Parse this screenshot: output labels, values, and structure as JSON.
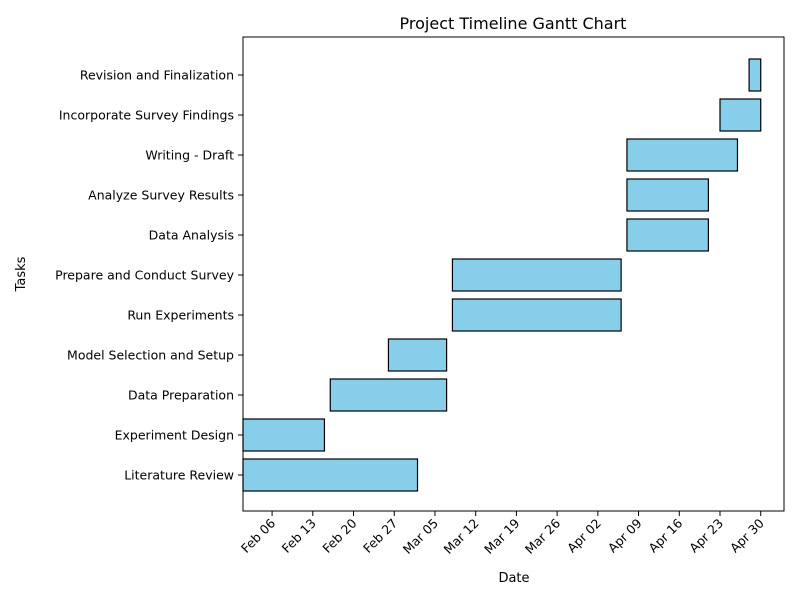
{
  "chart_data": {
    "type": "gantt",
    "title": "Project Timeline Gantt Chart",
    "xlabel": "Date",
    "ylabel": "Tasks",
    "grid": false,
    "year": 2024,
    "xlim": [
      "2024-02-01",
      "2024-05-04"
    ],
    "xticks": [
      {
        "date": "2024-02-06",
        "label": "Feb 06"
      },
      {
        "date": "2024-02-13",
        "label": "Feb 13"
      },
      {
        "date": "2024-02-20",
        "label": "Feb 20"
      },
      {
        "date": "2024-02-27",
        "label": "Feb 27"
      },
      {
        "date": "2024-03-05",
        "label": "Mar 05"
      },
      {
        "date": "2024-03-12",
        "label": "Mar 12"
      },
      {
        "date": "2024-03-19",
        "label": "Mar 19"
      },
      {
        "date": "2024-03-26",
        "label": "Mar 26"
      },
      {
        "date": "2024-04-02",
        "label": "Apr 02"
      },
      {
        "date": "2024-04-09",
        "label": "Apr 09"
      },
      {
        "date": "2024-04-16",
        "label": "Apr 16"
      },
      {
        "date": "2024-04-23",
        "label": "Apr 23"
      },
      {
        "date": "2024-04-30",
        "label": "Apr 30"
      }
    ],
    "tasks": [
      {
        "name": "Literature Review",
        "start": "2024-02-01",
        "end": "2024-03-02"
      },
      {
        "name": "Experiment Design",
        "start": "2024-02-01",
        "end": "2024-02-15"
      },
      {
        "name": "Data Preparation",
        "start": "2024-02-16",
        "end": "2024-03-07"
      },
      {
        "name": "Model Selection and Setup",
        "start": "2024-02-26",
        "end": "2024-03-07"
      },
      {
        "name": "Run Experiments",
        "start": "2024-03-08",
        "end": "2024-04-06"
      },
      {
        "name": "Prepare and Conduct Survey",
        "start": "2024-03-08",
        "end": "2024-04-06"
      },
      {
        "name": "Data Analysis",
        "start": "2024-04-07",
        "end": "2024-04-21"
      },
      {
        "name": "Analyze Survey Results",
        "start": "2024-04-07",
        "end": "2024-04-21"
      },
      {
        "name": "Writing - Draft",
        "start": "2024-04-07",
        "end": "2024-04-26"
      },
      {
        "name": "Incorporate Survey Findings",
        "start": "2024-04-23",
        "end": "2024-04-30"
      },
      {
        "name": "Revision and Finalization",
        "start": "2024-04-28",
        "end": "2024-04-30"
      }
    ],
    "colors": {
      "bar": "#87ceeb",
      "edge": "#000000"
    }
  }
}
